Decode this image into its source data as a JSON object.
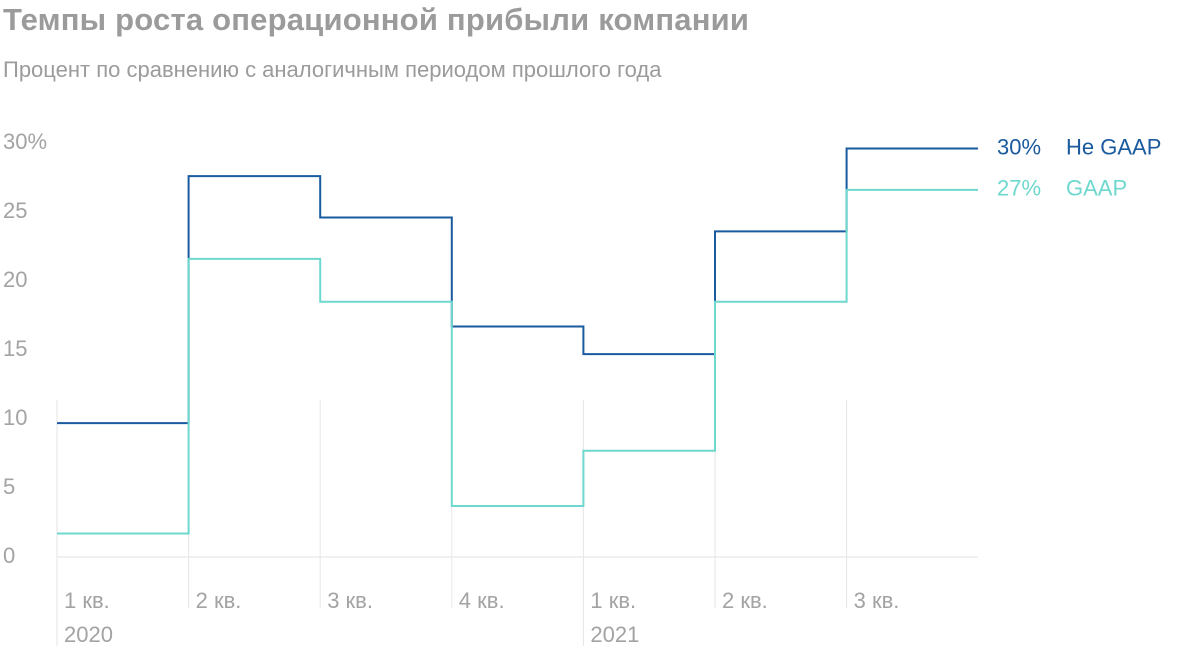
{
  "title": "Темпы роста операционной прибыли компании",
  "subtitle": "Процент по сравнению с аналогичным периодом прошлого года",
  "chart_data": {
    "type": "line",
    "step": true,
    "categories": [
      "1 кв.",
      "2 кв.",
      "3 кв.",
      "4 кв.",
      "1 кв.",
      "2 кв.",
      "3 кв."
    ],
    "year_labels": [
      {
        "index": 0,
        "label": "2020"
      },
      {
        "index": 4,
        "label": "2021"
      }
    ],
    "y_ticks": [
      "0",
      "5",
      "10",
      "15",
      "20",
      "25",
      "30%"
    ],
    "y_tick_values": [
      0,
      5,
      10,
      15,
      20,
      25,
      30
    ],
    "ylim": [
      0,
      30
    ],
    "grid": "vertical",
    "series": [
      {
        "name": "Не GAAP",
        "values": [
          9.7,
          27.6,
          24.6,
          16.7,
          14.7,
          23.6,
          29.6
        ],
        "color": "#1a5a9e",
        "end_label": "30%"
      },
      {
        "name": "GAAP",
        "values": [
          1.7,
          21.6,
          18.5,
          3.7,
          7.7,
          18.5,
          26.6
        ],
        "color": "#6fd8ce",
        "end_label": "27%"
      }
    ]
  }
}
